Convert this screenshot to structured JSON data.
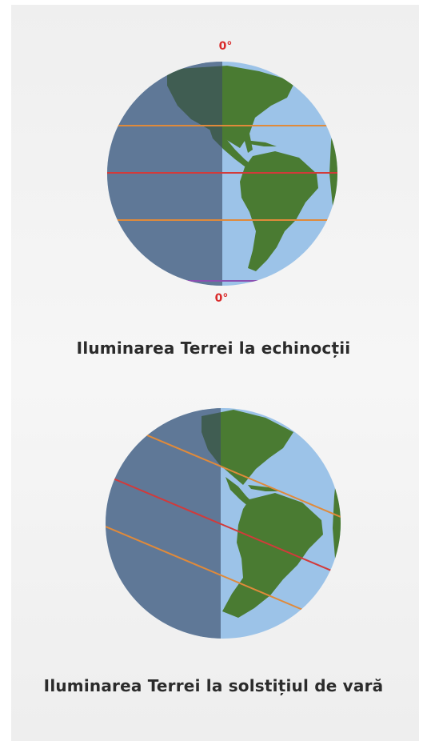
{
  "globe_equinox": {
    "label_top": "0°",
    "label_bottom": "0°",
    "caption": "Iluminarea Terrei la echinocții"
  },
  "globe_solstice": {
    "caption": "Iluminarea Terrei la solstițiul de vară"
  },
  "colors": {
    "ocean": "#9cc3e8",
    "land": "#4a7b32",
    "night_shade": "#3a4a66",
    "equator": "#d23a3a",
    "tropic": "#e08a3a",
    "polar_circle": "#8a4fb0",
    "label_red": "#d92a2a"
  }
}
